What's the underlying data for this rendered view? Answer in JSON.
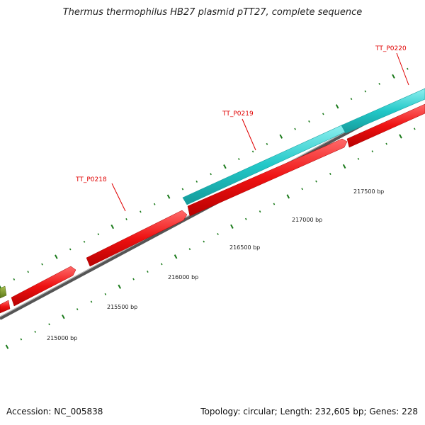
{
  "title": "Thermus thermophilus HB27 plasmid pTT27, complete sequence",
  "footer": {
    "accession": "Accession: NC_005838",
    "info": "Topology: circular; Length: 232,605 bp; Genes: 228"
  },
  "colors": {
    "forward_gene": "#ee1111",
    "reverse_gene": "#22c8c8",
    "other_gene": "#6a8a20",
    "backbone": "#777777",
    "ticks": "#1a7a1a",
    "label": "#e00000"
  },
  "ruler": [
    {
      "label": "215000 bp",
      "pos": 215000
    },
    {
      "label": "215500 bp",
      "pos": 215500
    },
    {
      "label": "216000 bp",
      "pos": 216000
    },
    {
      "label": "216500 bp",
      "pos": 216500
    },
    {
      "label": "217000 bp",
      "pos": 217000
    },
    {
      "label": "217500 bp",
      "pos": 217500
    }
  ],
  "genes": [
    {
      "name": "TT_P0218",
      "labeled": true
    },
    {
      "name": "TT_P0219",
      "labeled": true
    },
    {
      "name": "TT_P0220",
      "labeled": true
    }
  ]
}
